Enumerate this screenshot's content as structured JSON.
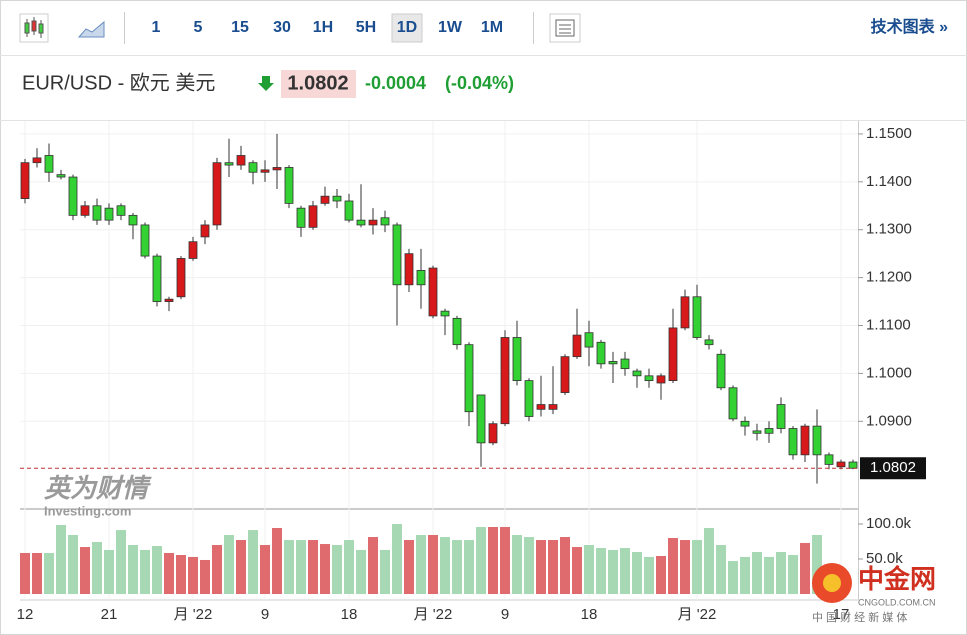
{
  "toolbar": {
    "intervals": [
      "1",
      "5",
      "15",
      "30",
      "1H",
      "5H",
      "1D",
      "1W",
      "1M"
    ],
    "selected": 6,
    "link": "技术图表 »"
  },
  "header": {
    "symbol": "EUR/USD - 欧元 美元",
    "change": "-0.0004",
    "change_pct": "(-0.04%)"
  },
  "watermark": {
    "cn": "英为财情",
    "en": "Investing.com"
  },
  "logo": {
    "name": "中金网",
    "url": "CNGOLD.COM.CN",
    "slogan": "中 国 财 经 新 媒 体"
  },
  "chart_data": {
    "type": "candlestick",
    "categories": [
      "12",
      null,
      null,
      null,
      null,
      null,
      null,
      "21",
      null,
      null,
      null,
      null,
      null,
      null,
      "月 '22",
      null,
      null,
      null,
      null,
      null,
      "9",
      null,
      null,
      null,
      null,
      null,
      null,
      "18",
      null,
      null,
      null,
      null,
      null,
      null,
      "月 '22",
      null,
      null,
      null,
      null,
      null,
      "9",
      null,
      null,
      null,
      null,
      null,
      null,
      "18",
      null,
      null,
      null,
      null,
      null,
      null,
      null,
      null,
      "月 '22",
      null,
      null,
      null,
      null,
      null,
      null,
      null,
      null,
      null,
      null,
      null,
      "17",
      null
    ],
    "open": [
      1.1365,
      1.144,
      1.1455,
      1.1415,
      1.141,
      1.133,
      1.135,
      1.1345,
      1.135,
      1.133,
      1.131,
      1.1245,
      1.115,
      1.116,
      1.124,
      1.1285,
      1.131,
      1.144,
      1.1435,
      1.144,
      1.142,
      1.1425,
      1.143,
      1.1345,
      1.1305,
      1.1355,
      1.137,
      1.136,
      1.132,
      1.131,
      1.1325,
      1.131,
      1.1185,
      1.1215,
      1.112,
      1.113,
      1.1115,
      1.106,
      1.0955,
      1.0855,
      1.0895,
      1.1075,
      1.0985,
      1.0925,
      1.0925,
      1.096,
      1.1035,
      1.1085,
      1.1065,
      1.1025,
      1.103,
      1.1005,
      1.0995,
      1.098,
      1.0985,
      1.1095,
      1.116,
      1.107,
      1.104,
      1.097,
      1.09,
      1.088,
      1.0885,
      1.0935,
      1.0885,
      1.083,
      1.089,
      1.083,
      1.0805,
      1.0815
    ],
    "high": [
      1.1448,
      1.147,
      1.148,
      1.1425,
      1.1415,
      1.136,
      1.1365,
      1.1355,
      1.1355,
      1.1335,
      1.1315,
      1.125,
      1.116,
      1.1245,
      1.1285,
      1.132,
      1.145,
      1.149,
      1.1475,
      1.1445,
      1.1445,
      1.15,
      1.1435,
      1.135,
      1.136,
      1.139,
      1.1385,
      1.1375,
      1.1395,
      1.1345,
      1.134,
      1.1315,
      1.126,
      1.126,
      1.1225,
      1.1135,
      1.112,
      1.1065,
      1.0955,
      1.09,
      1.109,
      1.111,
      1.099,
      1.0995,
      1.1015,
      1.104,
      1.1135,
      1.111,
      1.107,
      1.1045,
      1.1045,
      1.101,
      1.101,
      1.1,
      1.1135,
      1.1175,
      1.1185,
      1.108,
      1.105,
      1.0975,
      1.091,
      1.0895,
      1.09,
      1.095,
      1.089,
      1.0895,
      1.0925,
      1.0835,
      1.082,
      1.082
    ],
    "low": [
      1.1355,
      1.143,
      1.14,
      1.1405,
      1.132,
      1.1325,
      1.131,
      1.131,
      1.132,
      1.128,
      1.124,
      1.114,
      1.113,
      1.1155,
      1.1235,
      1.127,
      1.13,
      1.141,
      1.1425,
      1.1395,
      1.14,
      1.1385,
      1.1345,
      1.1285,
      1.13,
      1.135,
      1.1345,
      1.1315,
      1.1305,
      1.129,
      1.1295,
      1.11,
      1.117,
      1.1135,
      1.1115,
      1.108,
      1.105,
      1.089,
      1.0805,
      1.085,
      1.089,
      1.0975,
      1.09,
      1.091,
      1.0915,
      1.0955,
      1.103,
      1.1015,
      1.101,
      1.098,
      1.0995,
      1.097,
      1.097,
      1.0945,
      1.098,
      1.109,
      1.107,
      1.105,
      1.0965,
      1.09,
      1.087,
      1.086,
      1.0855,
      1.0875,
      1.082,
      1.0815,
      1.077,
      1.08,
      1.08,
      1.08
    ],
    "close": [
      1.144,
      1.145,
      1.142,
      1.141,
      1.133,
      1.135,
      1.132,
      1.132,
      1.133,
      1.131,
      1.1245,
      1.115,
      1.1155,
      1.124,
      1.1275,
      1.131,
      1.144,
      1.1435,
      1.1455,
      1.142,
      1.1425,
      1.143,
      1.1355,
      1.1305,
      1.135,
      1.137,
      1.136,
      1.132,
      1.131,
      1.132,
      1.131,
      1.1185,
      1.125,
      1.1185,
      1.122,
      1.112,
      1.106,
      1.092,
      1.0855,
      1.0895,
      1.1075,
      1.0985,
      1.091,
      1.0935,
      1.0935,
      1.1035,
      1.108,
      1.1055,
      1.102,
      1.102,
      1.101,
      1.0995,
      1.0985,
      1.0995,
      1.1095,
      1.116,
      1.1075,
      1.106,
      1.097,
      1.0905,
      1.089,
      1.0875,
      1.0875,
      1.0885,
      1.083,
      1.089,
      1.083,
      1.081,
      1.0815,
      1.0802
    ],
    "volume": [
      58600,
      58600,
      58600,
      98600,
      84300,
      67100,
      74300,
      62900,
      91400,
      70000,
      62900,
      68600,
      58600,
      55700,
      52900,
      48600,
      70000,
      84300,
      77100,
      91400,
      70000,
      94300,
      77100,
      77100,
      77100,
      71400,
      70000,
      77100,
      62900,
      81400,
      62900,
      100000,
      77100,
      84300,
      84300,
      81400,
      77100,
      77100,
      95700,
      95700,
      95700,
      84300,
      81400,
      77100,
      77100,
      81400,
      67100,
      70000,
      65700,
      62900,
      65700,
      60000,
      52900,
      54300,
      80000,
      77100,
      77100,
      94300,
      70000,
      47100,
      52900,
      60000,
      52900,
      60000,
      55700,
      72900,
      84300,
      null,
      null,
      null
    ],
    "up_color": "#d7191c",
    "down_color": "#33d133",
    "volume_up_color": "#e06b6e",
    "volume_down_color": "#a6d9b3",
    "ylim": [
      1.0719,
      1.1527
    ],
    "yticks": [
      {
        "value": 1.09,
        "label": "1.0900"
      },
      {
        "value": 1.1,
        "label": "1.1000"
      },
      {
        "value": 1.11,
        "label": "1.1100"
      },
      {
        "value": 1.12,
        "label": "1.1200"
      },
      {
        "value": 1.13,
        "label": "1.1300"
      },
      {
        "value": 1.14,
        "label": "1.1400"
      },
      {
        "value": 1.15,
        "label": "1.1500"
      }
    ],
    "y2lim": [
      0,
      120000
    ],
    "y2ticks": [
      {
        "value": 50000,
        "label": "50.0k"
      },
      {
        "value": 100000,
        "label": "100.0k"
      }
    ],
    "last_price": 1.0802,
    "grid": true
  }
}
